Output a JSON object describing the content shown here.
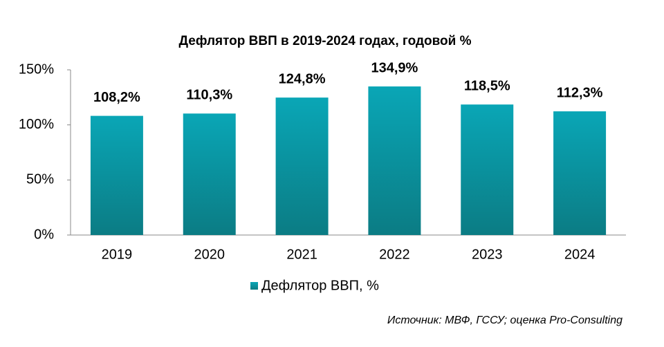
{
  "chart_data": {
    "type": "bar",
    "title": "Дефлятор ВВП в 2019-2024 годах, годовой %",
    "categories": [
      "2019",
      "2020",
      "2021",
      "2022",
      "2023",
      "2024"
    ],
    "series": [
      {
        "name": "Дефлятор ВВП, %",
        "color": "#0aa6b6",
        "values": [
          108.2,
          110.3,
          124.8,
          134.9,
          118.5,
          112.3
        ],
        "value_labels": [
          "108,2%",
          "110,3%",
          "124,8%",
          "134,9%",
          "118,5%",
          "112,3%"
        ]
      }
    ],
    "ylim": [
      0,
      150
    ],
    "yticks": [
      {
        "value": 0,
        "label": "0%"
      },
      {
        "value": 50,
        "label": "50%"
      },
      {
        "value": 100,
        "label": "100%"
      },
      {
        "value": 150,
        "label": "150%"
      }
    ],
    "grid": false,
    "legend": "bottom",
    "source": "Источник: МВФ, ГССУ; оценка Pro-Consulting"
  }
}
